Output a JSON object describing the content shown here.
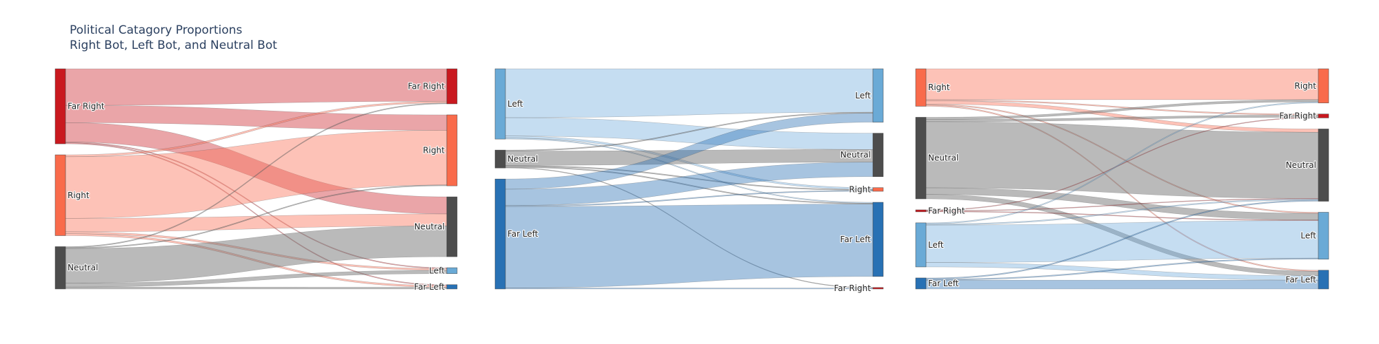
{
  "title_lines": [
    "Political Catagory Proportions",
    "Right Bot, Left Bot, and Neutral Bot"
  ],
  "colors": {
    "Far Right": "#c9191f",
    "Right": "#f96b4b",
    "Neutral": "#4d4d4d",
    "Left": "#6aaad6",
    "Far Left": "#2871b4",
    "link_Far Right": "rgba(205,40,48,0.42)",
    "link_Right": "rgba(250,120,95,0.45)",
    "link_Neutral": "rgba(110,110,110,0.48)",
    "link_Left": "rgba(110,170,220,0.40)",
    "link_Far Left": "rgba(45,115,180,0.42)"
  },
  "chart_data": [
    {
      "type": "sankey",
      "name": "Right Bot",
      "source_nodes": [
        "Far Right",
        "Right",
        "Neutral"
      ],
      "target_nodes": [
        "Far Right",
        "Right",
        "Neutral",
        "Left",
        "Far Left"
      ],
      "links": [
        {
          "source": "Far Right",
          "target": "Far Right",
          "value": 19
        },
        {
          "source": "Far Right",
          "target": "Right",
          "value": 9
        },
        {
          "source": "Far Right",
          "target": "Neutral",
          "value": 10
        },
        {
          "source": "Far Right",
          "target": "Left",
          "value": 0.5
        },
        {
          "source": "Far Right",
          "target": "Far Left",
          "value": 0.5
        },
        {
          "source": "Right",
          "target": "Far Right",
          "value": 1
        },
        {
          "source": "Right",
          "target": "Right",
          "value": 32
        },
        {
          "source": "Right",
          "target": "Neutral",
          "value": 7
        },
        {
          "source": "Right",
          "target": "Left",
          "value": 1
        },
        {
          "source": "Right",
          "target": "Far Left",
          "value": 1
        },
        {
          "source": "Neutral",
          "target": "Far Right",
          "value": 0.5
        },
        {
          "source": "Neutral",
          "target": "Right",
          "value": 0.5
        },
        {
          "source": "Neutral",
          "target": "Neutral",
          "value": 18
        },
        {
          "source": "Neutral",
          "target": "Left",
          "value": 2
        },
        {
          "source": "Neutral",
          "target": "Far Left",
          "value": 1
        }
      ]
    },
    {
      "type": "sankey",
      "name": "Left Bot",
      "source_nodes": [
        "Left",
        "Neutral",
        "Far Left"
      ],
      "target_nodes": [
        "Left",
        "Neutral",
        "Right",
        "Far Left",
        "Far Right"
      ],
      "links": [
        {
          "source": "Left",
          "target": "Left",
          "value": 24
        },
        {
          "source": "Left",
          "target": "Neutral",
          "value": 9
        },
        {
          "source": "Left",
          "target": "Right",
          "value": 1
        },
        {
          "source": "Left",
          "target": "Far Left",
          "value": 0.5
        },
        {
          "source": "Neutral",
          "target": "Left",
          "value": 0.5
        },
        {
          "source": "Neutral",
          "target": "Neutral",
          "value": 7
        },
        {
          "source": "Neutral",
          "target": "Right",
          "value": 0.5
        },
        {
          "source": "Neutral",
          "target": "Far Left",
          "value": 0.5
        },
        {
          "source": "Neutral",
          "target": "Far Right",
          "value": 0.3
        },
        {
          "source": "Far Left",
          "target": "Left",
          "value": 5
        },
        {
          "source": "Far Left",
          "target": "Neutral",
          "value": 8
        },
        {
          "source": "Far Left",
          "target": "Right",
          "value": 0.5
        },
        {
          "source": "Far Left",
          "target": "Far Left",
          "value": 40
        },
        {
          "source": "Far Left",
          "target": "Far Right",
          "value": 0.5
        }
      ]
    },
    {
      "type": "sankey",
      "name": "Neutral Bot",
      "source_nodes": [
        "Right",
        "Neutral",
        "Far Right",
        "Left",
        "Far Left"
      ],
      "target_nodes": [
        "Right",
        "Far Right",
        "Neutral",
        "Left",
        "Far Left"
      ],
      "links": [
        {
          "source": "Right",
          "target": "Right",
          "value": 14
        },
        {
          "source": "Right",
          "target": "Far Right",
          "value": 0.5
        },
        {
          "source": "Right",
          "target": "Neutral",
          "value": 1.5
        },
        {
          "source": "Right",
          "target": "Left",
          "value": 0.5
        },
        {
          "source": "Right",
          "target": "Far Left",
          "value": 0.5
        },
        {
          "source": "Neutral",
          "target": "Right",
          "value": 1
        },
        {
          "source": "Neutral",
          "target": "Far Right",
          "value": 1
        },
        {
          "source": "Neutral",
          "target": "Neutral",
          "value": 30
        },
        {
          "source": "Neutral",
          "target": "Left",
          "value": 3
        },
        {
          "source": "Neutral",
          "target": "Far Left",
          "value": 2
        },
        {
          "source": "Far Right",
          "target": "Far Right",
          "value": 0.3
        },
        {
          "source": "Far Right",
          "target": "Neutral",
          "value": 0.3
        },
        {
          "source": "Far Right",
          "target": "Left",
          "value": 0.3
        },
        {
          "source": "Left",
          "target": "Right",
          "value": 0.5
        },
        {
          "source": "Left",
          "target": "Neutral",
          "value": 0.5
        },
        {
          "source": "Left",
          "target": "Left",
          "value": 17
        },
        {
          "source": "Left",
          "target": "Far Left",
          "value": 2
        },
        {
          "source": "Far Left",
          "target": "Neutral",
          "value": 0.5
        },
        {
          "source": "Far Left",
          "target": "Left",
          "value": 0.5
        },
        {
          "source": "Far Left",
          "target": "Far Left",
          "value": 4
        }
      ]
    }
  ]
}
